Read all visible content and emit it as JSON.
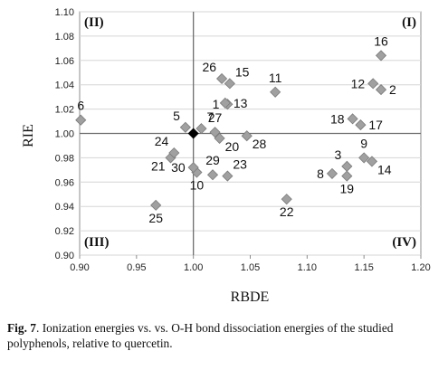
{
  "chart_data": {
    "type": "scatter",
    "xlabel": "RBDE",
    "ylabel": "RIE",
    "xlim": [
      0.9,
      1.2
    ],
    "ylim": [
      0.9,
      1.1
    ],
    "x_ticks": [
      "0.90",
      "0.95",
      "1.00",
      "1.05",
      "1.10",
      "1.15",
      "1.20"
    ],
    "y_ticks": [
      "0.90",
      "0.92",
      "0.94",
      "0.96",
      "0.98",
      "1.00",
      "1.02",
      "1.04",
      "1.06",
      "1.08",
      "1.10"
    ],
    "reference_lines": {
      "x": 1.0,
      "y": 1.0
    },
    "quadrants": [
      {
        "label": "(I)",
        "corner": "top-right"
      },
      {
        "label": "(II)",
        "corner": "top-left"
      },
      {
        "label": "(III)",
        "corner": "bottom-left"
      },
      {
        "label": "(IV)",
        "corner": "bottom-right"
      }
    ],
    "marker_color": "#a0a0a0",
    "reference_marker_color": "#000000",
    "points": [
      {
        "label": "1",
        "x": 1.03,
        "y": 1.024,
        "label_pos": "left"
      },
      {
        "label": "2",
        "x": 1.165,
        "y": 1.036,
        "label_pos": "right"
      },
      {
        "label": "3",
        "x": 1.135,
        "y": 0.973,
        "label_pos": "upper-left"
      },
      {
        "label": "5",
        "x": 0.993,
        "y": 1.005,
        "label_pos": "upper-left"
      },
      {
        "label": "6",
        "x": 0.901,
        "y": 1.011,
        "label_pos": "above"
      },
      {
        "label": "7",
        "x": 1.007,
        "y": 1.004,
        "label_pos": "upper-right"
      },
      {
        "label": "8",
        "x": 1.122,
        "y": 0.967,
        "label_pos": "left"
      },
      {
        "label": "9",
        "x": 1.15,
        "y": 0.98,
        "label_pos": "above"
      },
      {
        "label": "10",
        "x": 1.003,
        "y": 0.968,
        "label_pos": "below"
      },
      {
        "label": "11",
        "x": 1.072,
        "y": 1.034,
        "label_pos": "above"
      },
      {
        "label": "12",
        "x": 1.158,
        "y": 1.041,
        "label_pos": "left"
      },
      {
        "label": "13",
        "x": 1.028,
        "y": 1.025,
        "label_pos": "right"
      },
      {
        "label": "14",
        "x": 1.157,
        "y": 0.977,
        "label_pos": "lower-right"
      },
      {
        "label": "15",
        "x": 1.032,
        "y": 1.041,
        "label_pos": "upper-right"
      },
      {
        "label": "16",
        "x": 1.165,
        "y": 1.064,
        "label_pos": "above"
      },
      {
        "label": "17",
        "x": 1.147,
        "y": 1.007,
        "label_pos": "right"
      },
      {
        "label": "18",
        "x": 1.14,
        "y": 1.012,
        "label_pos": "left"
      },
      {
        "label": "19",
        "x": 1.135,
        "y": 0.965,
        "label_pos": "below"
      },
      {
        "label": "20",
        "x": 1.023,
        "y": 0.996,
        "label_pos": "lower-right"
      },
      {
        "label": "21",
        "x": 0.98,
        "y": 0.98,
        "label_pos": "lower-left"
      },
      {
        "label": "22",
        "x": 1.082,
        "y": 0.946,
        "label_pos": "below"
      },
      {
        "label": "23",
        "x": 1.03,
        "y": 0.965,
        "label_pos": "upper-right"
      },
      {
        "label": "24",
        "x": 0.983,
        "y": 0.984,
        "label_pos": "upper-left"
      },
      {
        "label": "25",
        "x": 0.967,
        "y": 0.941,
        "label_pos": "below"
      },
      {
        "label": "26",
        "x": 1.025,
        "y": 1.045,
        "label_pos": "upper-left"
      },
      {
        "label": "27",
        "x": 1.019,
        "y": 1.001,
        "label_pos": "above"
      },
      {
        "label": "28",
        "x": 1.047,
        "y": 0.998,
        "label_pos": "lower-right"
      },
      {
        "label": "29",
        "x": 1.017,
        "y": 0.966,
        "label_pos": "above"
      },
      {
        "label": "30",
        "x": 1.0,
        "y": 0.972,
        "label_pos": "left"
      }
    ],
    "reference_point": {
      "x": 1.0,
      "y": 1.0
    }
  },
  "caption": {
    "fig_label": "Fig. 7",
    "text": ". Ionization energies vs. vs. O-H bond dissociation energies of the studied polyphenols, relative to quercetin."
  }
}
